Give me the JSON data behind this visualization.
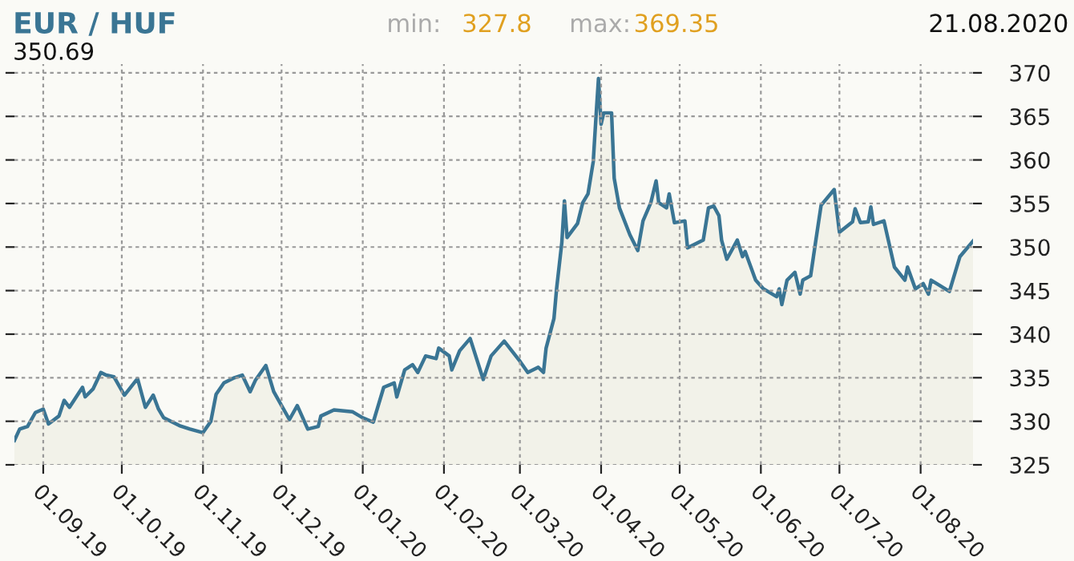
{
  "chart_data": {
    "type": "area",
    "title": "EUR / HUF",
    "annotations": [
      "min:",
      "327.8",
      "max:",
      "369.35",
      "21.08.2020",
      "350.69"
    ],
    "x": [
      "2019-08-21",
      "2019-08-23",
      "2019-08-26",
      "2019-08-29",
      "2019-09-01",
      "2019-09-03",
      "2019-09-07",
      "2019-09-09",
      "2019-09-11",
      "2019-09-16",
      "2019-09-17",
      "2019-09-20",
      "2019-09-23",
      "2019-09-25",
      "2019-09-28",
      "2019-10-02",
      "2019-10-07",
      "2019-10-10",
      "2019-10-13",
      "2019-10-15",
      "2019-10-17",
      "2019-10-23",
      "2019-10-27",
      "2019-11-01",
      "2019-11-04",
      "2019-11-06",
      "2019-11-09",
      "2019-11-13",
      "2019-11-16",
      "2019-11-19",
      "2019-11-21",
      "2019-11-25",
      "2019-11-28",
      "2019-12-04",
      "2019-12-07",
      "2019-12-11",
      "2019-12-15",
      "2019-12-16",
      "2019-12-21",
      "2019-12-28",
      "2020-01-01",
      "2020-01-05",
      "2020-01-09",
      "2020-01-13",
      "2020-01-14",
      "2020-01-17",
      "2020-01-20",
      "2020-01-22",
      "2020-01-25",
      "2020-01-29",
      "2020-01-30",
      "2020-02-03",
      "2020-02-04",
      "2020-02-07",
      "2020-02-11",
      "2020-02-16",
      "2020-02-19",
      "2020-02-24",
      "2020-03-01",
      "2020-03-04",
      "2020-03-08",
      "2020-03-10",
      "2020-03-11",
      "2020-03-14",
      "2020-03-15",
      "2020-03-17",
      "2020-03-18",
      "2020-03-19",
      "2020-03-23",
      "2020-03-25",
      "2020-03-27",
      "2020-03-29",
      "2020-03-30",
      "2020-03-31",
      "2020-04-01",
      "2020-04-02",
      "2020-04-05",
      "2020-04-06",
      "2020-04-08",
      "2020-04-12",
      "2020-04-15",
      "2020-04-17",
      "2020-04-20",
      "2020-04-22",
      "2020-04-23",
      "2020-04-26",
      "2020-04-27",
      "2020-04-29",
      "2020-05-03",
      "2020-05-04",
      "2020-05-10",
      "2020-05-12",
      "2020-05-14",
      "2020-05-16",
      "2020-05-17",
      "2020-05-19",
      "2020-05-23",
      "2020-05-25",
      "2020-05-26",
      "2020-05-30",
      "2020-06-02",
      "2020-06-07",
      "2020-06-08",
      "2020-06-09",
      "2020-06-11",
      "2020-06-14",
      "2020-06-16",
      "2020-06-17",
      "2020-06-20",
      "2020-06-22",
      "2020-06-24",
      "2020-06-29",
      "2020-07-01",
      "2020-07-06",
      "2020-07-07",
      "2020-07-09",
      "2020-07-12",
      "2020-07-13",
      "2020-07-14",
      "2020-07-18",
      "2020-07-22",
      "2020-07-26",
      "2020-07-27",
      "2020-07-30",
      "2020-08-02",
      "2020-08-04",
      "2020-08-05",
      "2020-08-12",
      "2020-08-16",
      "2020-08-21"
    ],
    "series": [
      {
        "color": "#3a7594",
        "values": [
          327.8,
          329.1,
          329.4,
          331.0,
          331.4,
          329.7,
          330.6,
          332.4,
          331.6,
          333.9,
          332.8,
          333.7,
          335.6,
          335.3,
          335.1,
          333.0,
          334.9,
          331.6,
          333.0,
          331.4,
          330.4,
          329.5,
          329.1,
          328.7,
          330.0,
          333.1,
          334.4,
          335.0,
          335.3,
          333.4,
          334.7,
          336.4,
          333.4,
          330.2,
          331.8,
          329.1,
          329.4,
          330.6,
          331.3,
          331.1,
          330.4,
          329.9,
          333.9,
          334.4,
          332.8,
          335.9,
          336.5,
          335.6,
          337.5,
          337.2,
          338.4,
          337.5,
          335.9,
          338.1,
          339.5,
          334.8,
          337.5,
          339.2,
          336.9,
          335.6,
          336.2,
          335.6,
          338.4,
          341.8,
          345.2,
          350.5,
          355.3,
          351.1,
          352.7,
          355.1,
          356.1,
          359.8,
          364.7,
          369.35,
          364.1,
          365.4,
          365.4,
          357.9,
          354.5,
          351.4,
          349.6,
          353.0,
          355.1,
          357.6,
          355.1,
          354.5,
          356.1,
          352.8,
          353.0,
          349.9,
          350.8,
          354.5,
          354.7,
          353.6,
          350.8,
          348.6,
          350.8,
          348.9,
          349.5,
          346.2,
          345.2,
          344.3,
          345.2,
          343.4,
          346.2,
          347.1,
          344.6,
          346.2,
          346.7,
          350.8,
          354.8,
          356.6,
          351.7,
          352.9,
          354.4,
          352.8,
          352.9,
          354.6,
          352.6,
          353.0,
          347.7,
          346.2,
          347.7,
          345.2,
          345.8,
          344.6,
          346.2,
          344.9,
          348.9,
          350.69
        ]
      }
    ],
    "xlim": [
      "2019-08-21",
      "2020-08-21"
    ],
    "xticks": [
      {
        "value": "2019-09-01",
        "label": "01.09.19"
      },
      {
        "value": "2019-10-01",
        "label": "01.10.19"
      },
      {
        "value": "2019-11-01",
        "label": "01.11.19"
      },
      {
        "value": "2019-12-01",
        "label": "01.12.19"
      },
      {
        "value": "2020-01-01",
        "label": "01.01.20"
      },
      {
        "value": "2020-02-01",
        "label": "01.02.20"
      },
      {
        "value": "2020-03-01",
        "label": "01.03.20"
      },
      {
        "value": "2020-04-01",
        "label": "01.04.20"
      },
      {
        "value": "2020-05-01",
        "label": "01.05.20"
      },
      {
        "value": "2020-06-01",
        "label": "01.06.20"
      },
      {
        "value": "2020-07-01",
        "label": "01.07.20"
      },
      {
        "value": "2020-08-01",
        "label": "01.08.20"
      }
    ],
    "ylim": [
      325,
      371
    ],
    "yticks": [
      325,
      330,
      335,
      340,
      345,
      350,
      355,
      360,
      365,
      370
    ],
    "grid": true,
    "legend": false
  }
}
